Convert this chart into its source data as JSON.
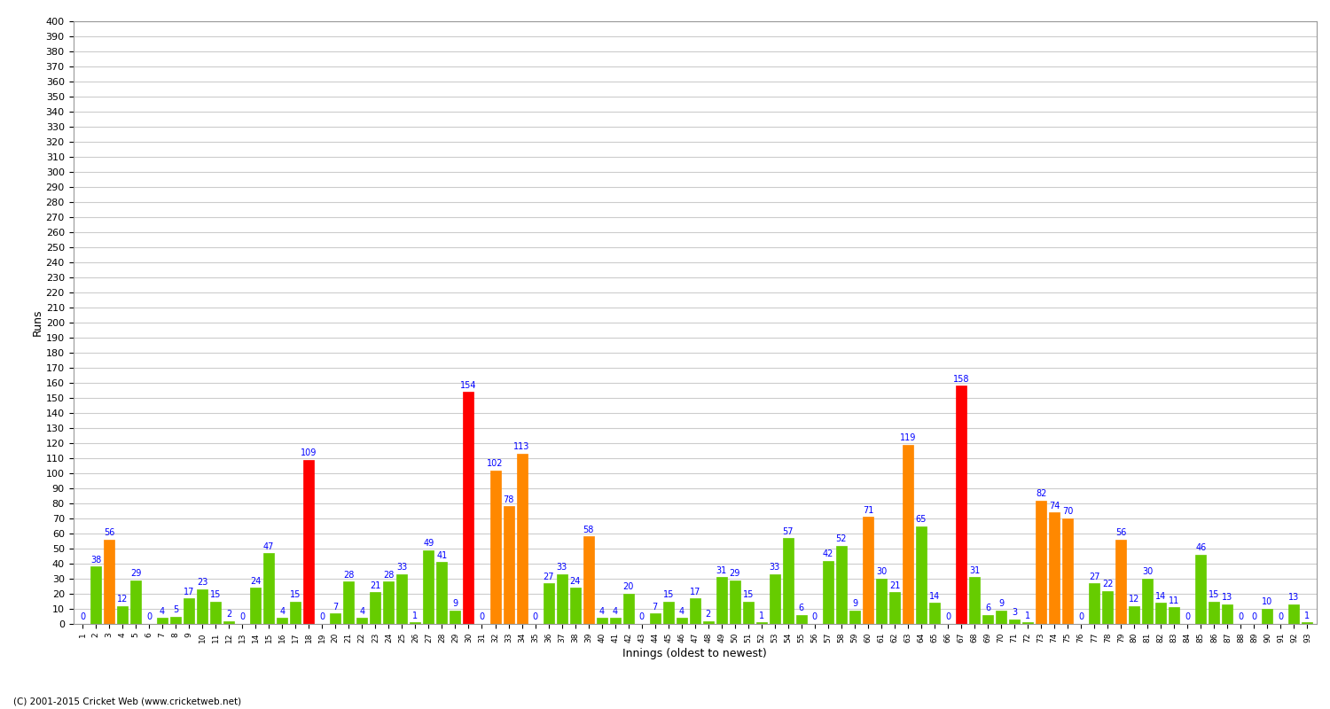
{
  "xlabel": "Innings (oldest to newest)",
  "ylabel": "Runs",
  "footer": "(C) 2001-2015 Cricket Web (www.cricketweb.net)",
  "ylim": [
    0,
    400
  ],
  "innings": [
    {
      "inning": 1,
      "score": 0,
      "color": "green"
    },
    {
      "inning": 2,
      "score": 38,
      "color": "green"
    },
    {
      "inning": 3,
      "score": 56,
      "color": "orange"
    },
    {
      "inning": 4,
      "score": 12,
      "color": "green"
    },
    {
      "inning": 5,
      "score": 29,
      "color": "green"
    },
    {
      "inning": 6,
      "score": 0,
      "color": "green"
    },
    {
      "inning": 7,
      "score": 4,
      "color": "green"
    },
    {
      "inning": 8,
      "score": 5,
      "color": "green"
    },
    {
      "inning": 9,
      "score": 17,
      "color": "green"
    },
    {
      "inning": 10,
      "score": 23,
      "color": "green"
    },
    {
      "inning": 11,
      "score": 15,
      "color": "green"
    },
    {
      "inning": 12,
      "score": 2,
      "color": "green"
    },
    {
      "inning": 13,
      "score": 0,
      "color": "green"
    },
    {
      "inning": 14,
      "score": 24,
      "color": "green"
    },
    {
      "inning": 15,
      "score": 47,
      "color": "green"
    },
    {
      "inning": 16,
      "score": 4,
      "color": "green"
    },
    {
      "inning": 17,
      "score": 15,
      "color": "green"
    },
    {
      "inning": 18,
      "score": 109,
      "color": "red"
    },
    {
      "inning": 19,
      "score": 0,
      "color": "green"
    },
    {
      "inning": 20,
      "score": 7,
      "color": "green"
    },
    {
      "inning": 21,
      "score": 28,
      "color": "green"
    },
    {
      "inning": 22,
      "score": 4,
      "color": "green"
    },
    {
      "inning": 23,
      "score": 21,
      "color": "green"
    },
    {
      "inning": 24,
      "score": 28,
      "color": "green"
    },
    {
      "inning": 25,
      "score": 33,
      "color": "green"
    },
    {
      "inning": 26,
      "score": 1,
      "color": "green"
    },
    {
      "inning": 27,
      "score": 49,
      "color": "green"
    },
    {
      "inning": 28,
      "score": 41,
      "color": "green"
    },
    {
      "inning": 29,
      "score": 9,
      "color": "green"
    },
    {
      "inning": 30,
      "score": 154,
      "color": "red"
    },
    {
      "inning": 31,
      "score": 0,
      "color": "green"
    },
    {
      "inning": 32,
      "score": 102,
      "color": "orange"
    },
    {
      "inning": 33,
      "score": 78,
      "color": "orange"
    },
    {
      "inning": 34,
      "score": 113,
      "color": "orange"
    },
    {
      "inning": 35,
      "score": 0,
      "color": "green"
    },
    {
      "inning": 36,
      "score": 27,
      "color": "green"
    },
    {
      "inning": 37,
      "score": 33,
      "color": "green"
    },
    {
      "inning": 38,
      "score": 24,
      "color": "green"
    },
    {
      "inning": 39,
      "score": 58,
      "color": "orange"
    },
    {
      "inning": 40,
      "score": 4,
      "color": "green"
    },
    {
      "inning": 41,
      "score": 4,
      "color": "green"
    },
    {
      "inning": 42,
      "score": 20,
      "color": "green"
    },
    {
      "inning": 43,
      "score": 0,
      "color": "green"
    },
    {
      "inning": 44,
      "score": 7,
      "color": "green"
    },
    {
      "inning": 45,
      "score": 15,
      "color": "green"
    },
    {
      "inning": 46,
      "score": 4,
      "color": "green"
    },
    {
      "inning": 47,
      "score": 17,
      "color": "green"
    },
    {
      "inning": 48,
      "score": 2,
      "color": "green"
    },
    {
      "inning": 49,
      "score": 31,
      "color": "green"
    },
    {
      "inning": 50,
      "score": 29,
      "color": "green"
    },
    {
      "inning": 51,
      "score": 15,
      "color": "green"
    },
    {
      "inning": 52,
      "score": 1,
      "color": "green"
    },
    {
      "inning": 53,
      "score": 33,
      "color": "green"
    },
    {
      "inning": 54,
      "score": 57,
      "color": "green"
    },
    {
      "inning": 55,
      "score": 6,
      "color": "green"
    },
    {
      "inning": 56,
      "score": 0,
      "color": "green"
    },
    {
      "inning": 57,
      "score": 42,
      "color": "green"
    },
    {
      "inning": 58,
      "score": 52,
      "color": "green"
    },
    {
      "inning": 59,
      "score": 9,
      "color": "green"
    },
    {
      "inning": 60,
      "score": 71,
      "color": "orange"
    },
    {
      "inning": 61,
      "score": 30,
      "color": "green"
    },
    {
      "inning": 62,
      "score": 21,
      "color": "green"
    },
    {
      "inning": 63,
      "score": 119,
      "color": "orange"
    },
    {
      "inning": 64,
      "score": 65,
      "color": "green"
    },
    {
      "inning": 65,
      "score": 14,
      "color": "green"
    },
    {
      "inning": 66,
      "score": 0,
      "color": "green"
    },
    {
      "inning": 67,
      "score": 158,
      "color": "red"
    },
    {
      "inning": 68,
      "score": 31,
      "color": "green"
    },
    {
      "inning": 69,
      "score": 6,
      "color": "green"
    },
    {
      "inning": 70,
      "score": 9,
      "color": "green"
    },
    {
      "inning": 71,
      "score": 3,
      "color": "green"
    },
    {
      "inning": 72,
      "score": 1,
      "color": "green"
    },
    {
      "inning": 73,
      "score": 82,
      "color": "orange"
    },
    {
      "inning": 74,
      "score": 74,
      "color": "orange"
    },
    {
      "inning": 75,
      "score": 70,
      "color": "orange"
    },
    {
      "inning": 76,
      "score": 0,
      "color": "green"
    },
    {
      "inning": 77,
      "score": 27,
      "color": "green"
    },
    {
      "inning": 78,
      "score": 22,
      "color": "green"
    },
    {
      "inning": 79,
      "score": 56,
      "color": "orange"
    },
    {
      "inning": 80,
      "score": 12,
      "color": "green"
    },
    {
      "inning": 81,
      "score": 30,
      "color": "green"
    },
    {
      "inning": 82,
      "score": 14,
      "color": "green"
    },
    {
      "inning": 83,
      "score": 11,
      "color": "green"
    },
    {
      "inning": 84,
      "score": 0,
      "color": "green"
    },
    {
      "inning": 85,
      "score": 46,
      "color": "green"
    },
    {
      "inning": 86,
      "score": 15,
      "color": "green"
    },
    {
      "inning": 87,
      "score": 13,
      "color": "green"
    },
    {
      "inning": 88,
      "score": 0,
      "color": "green"
    },
    {
      "inning": 89,
      "score": 0,
      "color": "green"
    },
    {
      "inning": 90,
      "score": 10,
      "color": "green"
    },
    {
      "inning": 91,
      "score": 0,
      "color": "green"
    },
    {
      "inning": 92,
      "score": 13,
      "color": "green"
    },
    {
      "inning": 93,
      "score": 1,
      "color": "green"
    }
  ],
  "bar_width": 0.8,
  "bg_color": "#ffffff",
  "grid_color": "#cccccc",
  "label_color": "blue",
  "label_fontsize": 7,
  "axis_fontsize": 8,
  "title_fontsize": 11,
  "color_map": {
    "green": "#66cc00",
    "orange": "#ff8800",
    "red": "#ff0000"
  }
}
